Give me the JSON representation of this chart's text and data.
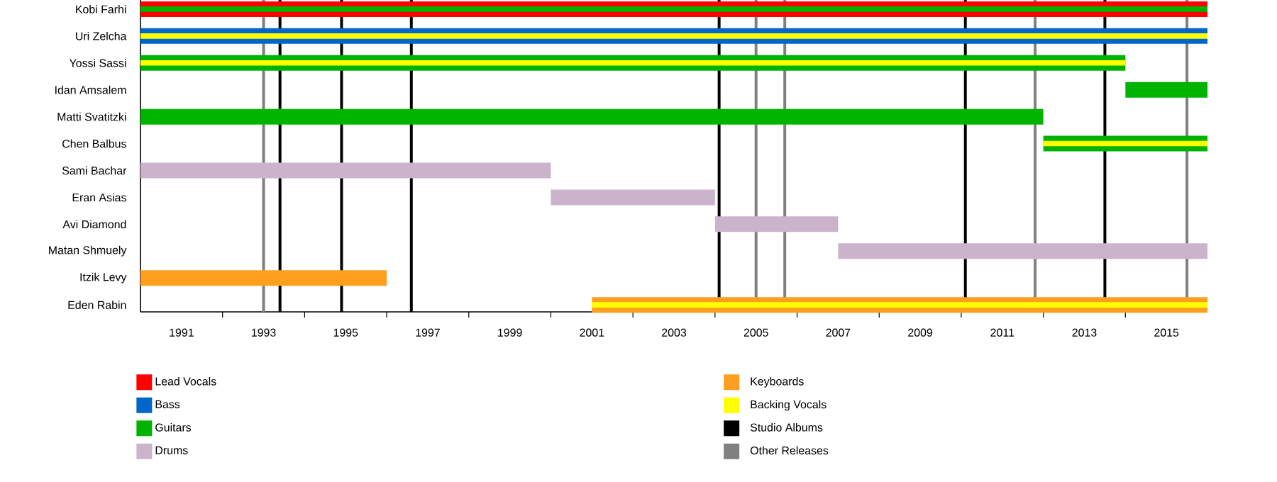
{
  "chart_data": {
    "type": "bar",
    "orientation": "horizontal",
    "legend": "bottom",
    "categories": [
      "Kobi Farhi",
      "Uri Zelcha",
      "Yossi Sassi",
      "Idan Amsalem",
      "Matti Svatitzki",
      "Chen Balbus",
      "Sami Bachar",
      "Eran Asias",
      "Avi Diamond",
      "Matan Shmuely",
      "Itzik Levy",
      "Eden Rabin"
    ],
    "xlim": [
      1990,
      2016
    ],
    "xticks": [
      1991,
      {
        "value": 1992,
        "label": null
      },
      1993,
      {
        "value": 1994,
        "label": null
      },
      1995,
      {
        "value": 1996,
        "label": null
      },
      1997,
      {
        "value": 1998,
        "label": null
      },
      1999,
      {
        "value": 2000,
        "label": null
      },
      2001,
      {
        "value": 2002,
        "label": null
      },
      2003,
      {
        "value": 2004,
        "label": null
      },
      2005,
      {
        "value": 2006,
        "label": null
      },
      2007,
      {
        "value": 2008,
        "label": null
      },
      2009,
      {
        "value": 2010,
        "label": null
      },
      2011,
      {
        "value": 2012,
        "label": null
      },
      2013,
      {
        "value": 2014,
        "label": null
      },
      2015
    ],
    "series": [
      {
        "name": "Lead Vocals",
        "color": "#ff0000",
        "base": [
          1990,
          null,
          null,
          null,
          null,
          null,
          null,
          null,
          null,
          null,
          null,
          null
        ],
        "values": [
          26,
          null,
          null,
          null,
          null,
          null,
          null,
          null,
          null,
          null,
          null,
          null
        ]
      },
      {
        "name": "Bass",
        "color": "#0066cc",
        "base": [
          null,
          1990,
          null,
          null,
          null,
          null,
          null,
          null,
          null,
          null,
          null,
          null
        ],
        "values": [
          null,
          26,
          null,
          null,
          null,
          null,
          null,
          null,
          null,
          null,
          null,
          null
        ]
      },
      {
        "name": "Guitars",
        "color": "#00b300",
        "base": [
          1990,
          null,
          1990,
          2014,
          1990,
          2012,
          null,
          null,
          null,
          null,
          null,
          null
        ],
        "values": [
          26,
          null,
          24,
          2,
          22,
          4,
          null,
          null,
          null,
          null,
          null,
          null
        ]
      },
      {
        "name": "Drums",
        "color": "#ccb3cc",
        "base": [
          null,
          null,
          null,
          null,
          null,
          null,
          1990,
          2000,
          2004,
          2007,
          null,
          null
        ],
        "values": [
          null,
          null,
          null,
          null,
          null,
          null,
          10,
          4,
          3,
          9,
          null,
          null
        ]
      },
      {
        "name": "Keyboards",
        "color": "#ff9f1f",
        "base": [
          null,
          null,
          null,
          null,
          null,
          null,
          null,
          null,
          null,
          null,
          1990,
          2001
        ],
        "values": [
          null,
          null,
          null,
          null,
          null,
          null,
          null,
          null,
          null,
          null,
          6,
          15
        ]
      },
      {
        "name": "Backing Vocals",
        "color": "#ffff00",
        "base": [
          null,
          1990,
          1990,
          null,
          null,
          2012,
          null,
          null,
          null,
          null,
          null,
          2001
        ],
        "values": [
          null,
          26,
          24,
          null,
          null,
          4,
          null,
          null,
          null,
          null,
          null,
          15
        ]
      }
    ],
    "ref_lines": [
      {
        "axis": "x",
        "value": 1993.0,
        "label": null,
        "color": "#808080"
      },
      {
        "axis": "x",
        "value": 1993.4,
        "label": "Studio Albums",
        "color": "#000000"
      },
      {
        "axis": "x",
        "value": 1994.9,
        "label": null,
        "color": "#000000"
      },
      {
        "axis": "x",
        "value": 1996.6,
        "label": null,
        "color": "#000000"
      },
      {
        "axis": "x",
        "value": 2004.1,
        "label": null,
        "color": "#000000"
      },
      {
        "axis": "x",
        "value": 2005.0,
        "label": "Other Releases",
        "color": "#808080"
      },
      {
        "axis": "x",
        "value": 2005.7,
        "label": null,
        "color": "#808080"
      },
      {
        "axis": "x",
        "value": 2010.1,
        "label": null,
        "color": "#000000"
      },
      {
        "axis": "x",
        "value": 2011.8,
        "label": null,
        "color": "#808080"
      },
      {
        "axis": "x",
        "value": 2013.5,
        "label": null,
        "color": "#000000"
      },
      {
        "axis": "x",
        "value": 2015.5,
        "label": null,
        "color": "#808080"
      }
    ]
  }
}
